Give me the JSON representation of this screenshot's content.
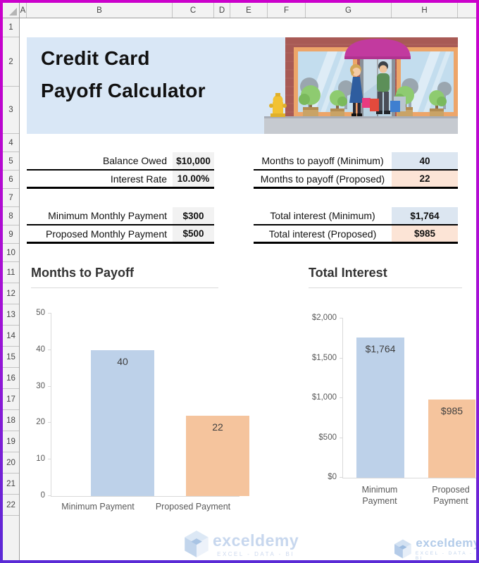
{
  "spreadsheet": {
    "column_headers": [
      "A",
      "B",
      "C",
      "D",
      "E",
      "F",
      "G",
      "H"
    ],
    "row_numbers": [
      "1",
      "2",
      "3",
      "4",
      "5",
      "6",
      "7",
      "8",
      "9",
      "10",
      "11",
      "12",
      "13",
      "14",
      "15",
      "16",
      "17",
      "18",
      "19",
      "20",
      "21",
      "22"
    ]
  },
  "banner": {
    "title_line1": "Credit Card",
    "title_line2": "Payoff Calculator",
    "illustration": "storefront-shopping-scene"
  },
  "calculator": {
    "left_rows": [
      {
        "label": "Balance Owed",
        "value": "$10,000"
      },
      {
        "label": "Interest Rate",
        "value": "10.00%"
      },
      {
        "label": "Minimum Monthly Payment",
        "value": "$300"
      },
      {
        "label": "Proposed Monthly Payment",
        "value": "$500"
      }
    ],
    "right_rows": [
      {
        "label": "Months to payoff (Minimum)",
        "value": "40",
        "highlight": "blue"
      },
      {
        "label": "Months to payoff (Proposed)",
        "value": "22",
        "highlight": "peach"
      },
      {
        "label": "Total interest (Minimum)",
        "value": "$1,764",
        "highlight": "blue"
      },
      {
        "label": "Total interest (Proposed)",
        "value": "$985",
        "highlight": "peach"
      }
    ]
  },
  "chart_data": [
    {
      "type": "bar",
      "title": "Months to Payoff",
      "categories": [
        "Minimum Payment",
        "Proposed Payment"
      ],
      "values": [
        40,
        22
      ],
      "data_labels": [
        "40",
        "22"
      ],
      "y_ticks": [
        "50",
        "40",
        "30",
        "20",
        "10",
        "0"
      ],
      "ylim": [
        0,
        50
      ],
      "xlabel": "",
      "ylabel": "",
      "grid": false,
      "legend": "none",
      "bar_colors": [
        "#bdd1e9",
        "#f5c49d"
      ]
    },
    {
      "type": "bar",
      "title": "Total Interest",
      "categories": [
        "Minimum Payment",
        "Proposed Payment"
      ],
      "values": [
        1764,
        985
      ],
      "data_labels": [
        "$1,764",
        "$985"
      ],
      "y_ticks": [
        "$2,000",
        "$1,500",
        "$1,000",
        "$500",
        "$0"
      ],
      "ylim": [
        0,
        2000
      ],
      "xlabel": "",
      "ylabel": "",
      "grid": false,
      "legend": "none",
      "bar_colors": [
        "#bdd1e9",
        "#f5c49d"
      ]
    }
  ],
  "watermark": {
    "brand": "exceldemy",
    "tagline": "EXCEL - DATA - BI"
  },
  "colors": {
    "banner_bg": "#d9e7f6",
    "value_gray_fill": "#f2f2f2",
    "accent_blue_fill": "#dce6f1",
    "accent_peach_fill": "#fce4d6",
    "bar_blue": "#bdd1e9",
    "bar_orange": "#f5c49d",
    "awning_magenta": "#c23a9f"
  }
}
